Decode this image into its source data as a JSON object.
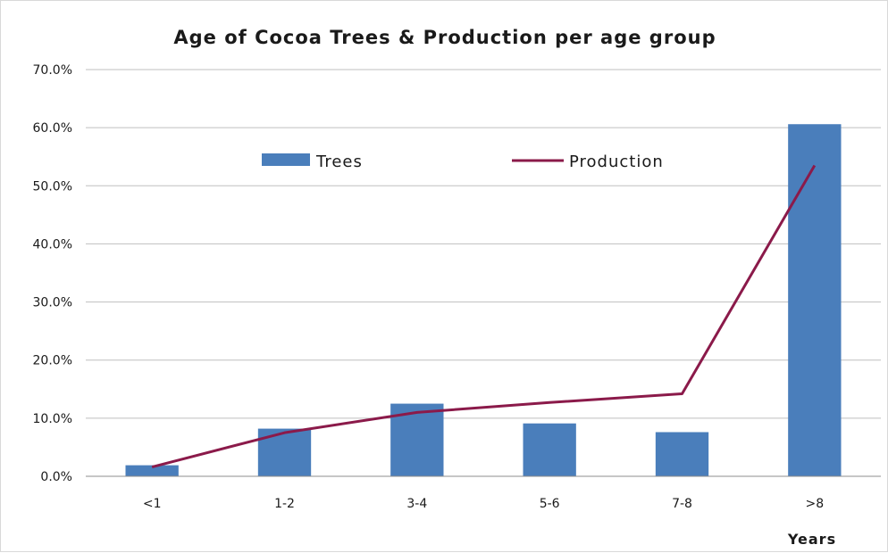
{
  "chart_data": {
    "type": "bar",
    "title": "Age of Cocoa Trees & Production per age group",
    "xlabel": "Years",
    "ylabel": "",
    "categories": [
      "<1",
      "1-2",
      "3-4",
      "5-6",
      "7-8",
      ">8"
    ],
    "series": [
      {
        "name": "Trees",
        "type": "bar",
        "color": "#4a7ebb",
        "values": [
          1.9,
          8.2,
          12.5,
          9.1,
          7.6,
          60.6
        ]
      },
      {
        "name": "Production",
        "type": "line",
        "color": "#8b1a4a",
        "values": [
          1.6,
          7.5,
          11.0,
          12.7,
          14.2,
          53.5
        ]
      }
    ],
    "ylim": [
      0,
      70
    ],
    "yticks": [
      "0.0%",
      "10.0%",
      "20.0%",
      "30.0%",
      "40.0%",
      "50.0%",
      "60.0%",
      "70.0%"
    ],
    "grid": true,
    "legend_position": "top-center"
  }
}
